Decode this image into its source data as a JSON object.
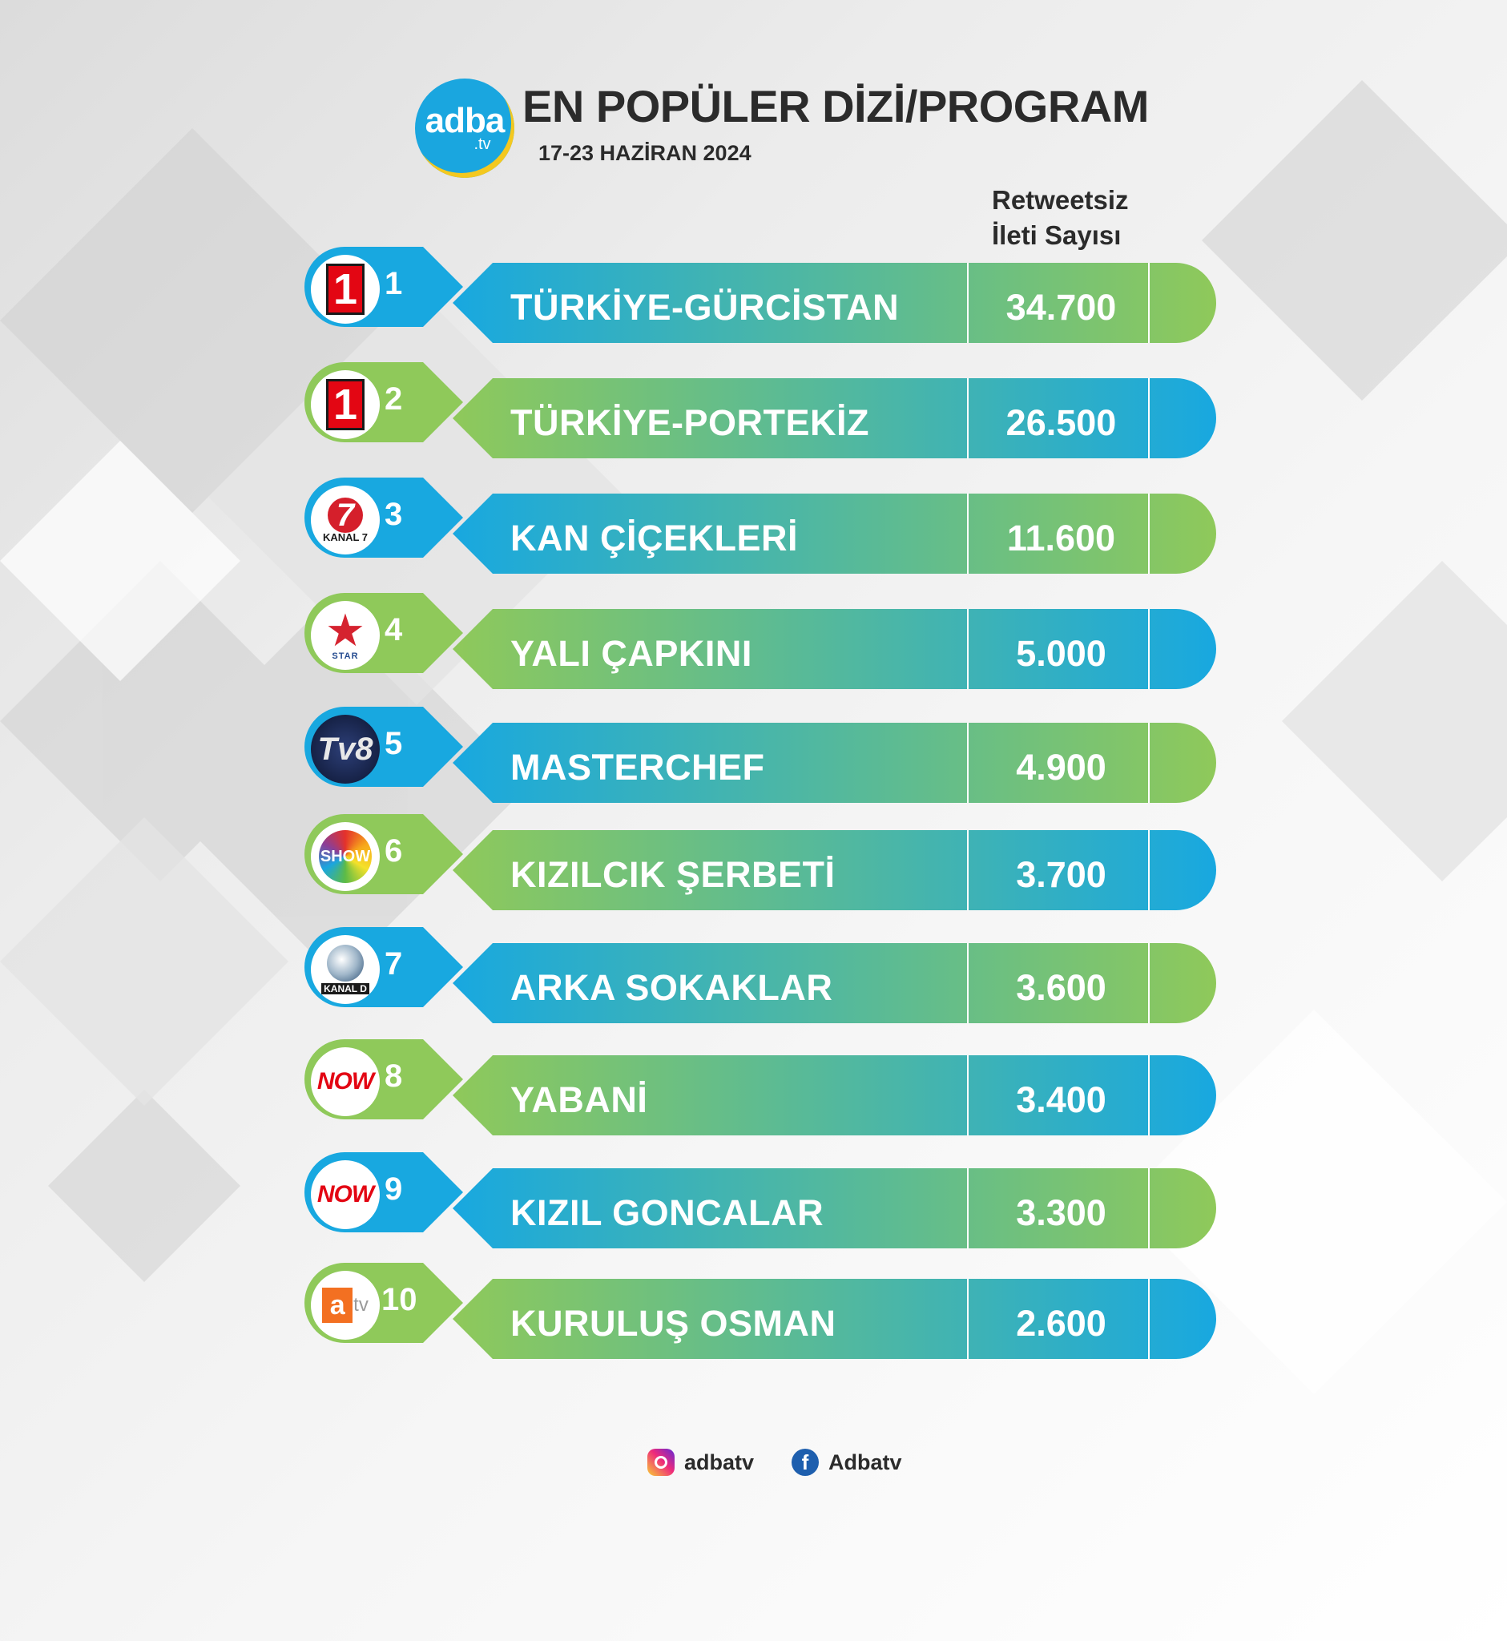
{
  "brand": {
    "name": "adba",
    "suffix": ".tv"
  },
  "header": {
    "title": "EN POPÜLER DİZİ/PROGRAM",
    "date": "17-23 HAZİRAN 2024",
    "column_label_line1": "Retweetsiz",
    "column_label_line2": "İleti Sayısı"
  },
  "colors": {
    "blue": "#18a8e0",
    "green": "#8fc95a"
  },
  "rows": [
    {
      "rank": "1",
      "channel": "trt-1",
      "channel_text": "1",
      "title": "TÜRKİYE-GÜRCİSTAN",
      "count": "34.700",
      "value": 34700,
      "style": "blue"
    },
    {
      "rank": "2",
      "channel": "trt-1",
      "channel_text": "1",
      "title": "TÜRKİYE-PORTEKİZ",
      "count": "26.500",
      "value": 26500,
      "style": "green"
    },
    {
      "rank": "3",
      "channel": "kanal-7",
      "channel_text": "KANAL 7",
      "title": "KAN ÇİÇEKLERİ",
      "count": "11.600",
      "value": 11600,
      "style": "blue"
    },
    {
      "rank": "4",
      "channel": "star-tv",
      "channel_text": "STAR",
      "title": "YALI ÇAPKINI",
      "count": "5.000",
      "value": 5000,
      "style": "green"
    },
    {
      "rank": "5",
      "channel": "tv8",
      "channel_text": "Tv8",
      "title": "MASTERCHEF",
      "count": "4.900",
      "value": 4900,
      "style": "blue"
    },
    {
      "rank": "6",
      "channel": "show-tv",
      "channel_text": "SHOW",
      "title": "KIZILCIK ŞERBETİ",
      "count": "3.700",
      "value": 3700,
      "style": "green"
    },
    {
      "rank": "7",
      "channel": "kanal-d",
      "channel_text": "KANAL D",
      "title": "ARKA SOKAKLAR",
      "count": "3.600",
      "value": 3600,
      "style": "blue"
    },
    {
      "rank": "8",
      "channel": "now",
      "channel_text": "NOW",
      "title": "YABANİ",
      "count": "3.400",
      "value": 3400,
      "style": "green"
    },
    {
      "rank": "9",
      "channel": "now",
      "channel_text": "NOW",
      "title": "KIZIL GONCALAR",
      "count": "3.300",
      "value": 3300,
      "style": "blue"
    },
    {
      "rank": "10",
      "channel": "atv",
      "channel_text": "a",
      "channel_text_2": "tv",
      "title": "KURULUŞ OSMAN",
      "count": "2.600",
      "value": 2600,
      "style": "green"
    }
  ],
  "footer": {
    "instagram": {
      "icon": "instagram-icon",
      "handle": "adbatv"
    },
    "facebook": {
      "icon": "facebook-icon",
      "handle": "Adbatv"
    }
  }
}
